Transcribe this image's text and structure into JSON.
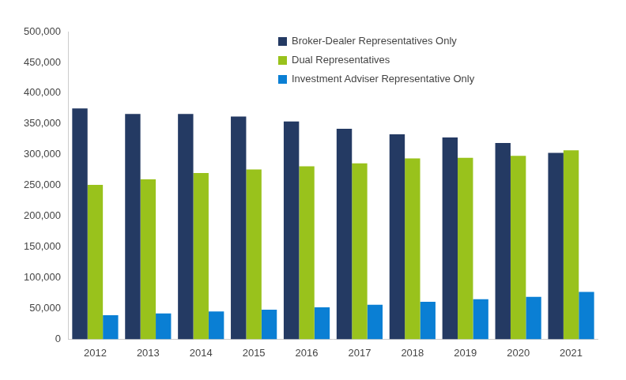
{
  "chart_data": {
    "type": "bar",
    "categories": [
      "2012",
      "2013",
      "2014",
      "2015",
      "2016",
      "2017",
      "2018",
      "2019",
      "2020",
      "2021"
    ],
    "series": [
      {
        "name": "Broker-Dealer Representatives Only",
        "color": "#243a63",
        "values": [
          375000,
          366000,
          366000,
          362000,
          354000,
          342000,
          333000,
          328000,
          319000,
          303000
        ]
      },
      {
        "name": "Dual Representatives",
        "color": "#99c21c",
        "values": [
          251000,
          260000,
          270000,
          276000,
          281000,
          286000,
          294000,
          295000,
          298000,
          307000
        ]
      },
      {
        "name": "Investment Adviser Representative Only",
        "color": "#0a7fd4",
        "values": [
          39000,
          42000,
          45000,
          48000,
          52000,
          56000,
          61000,
          65000,
          69000,
          77000
        ]
      }
    ],
    "ylim": [
      0,
      500000
    ],
    "yticks": [
      0,
      {
        "value": 50000,
        "label": "50,000"
      },
      {
        "value": 100000,
        "label": "100,000"
      },
      {
        "value": 150000,
        "label": "150,000"
      },
      {
        "value": 200000,
        "label": "200,000"
      },
      {
        "value": 250000,
        "label": "250,000"
      },
      {
        "value": 300000,
        "label": "300,000"
      },
      {
        "value": 350000,
        "label": "350,000"
      },
      {
        "value": 400000,
        "label": "400,000"
      },
      {
        "value": 450000,
        "label": "450,000"
      },
      {
        "value": 500000,
        "label": "500,000"
      }
    ],
    "grid": false,
    "legend": "top"
  }
}
